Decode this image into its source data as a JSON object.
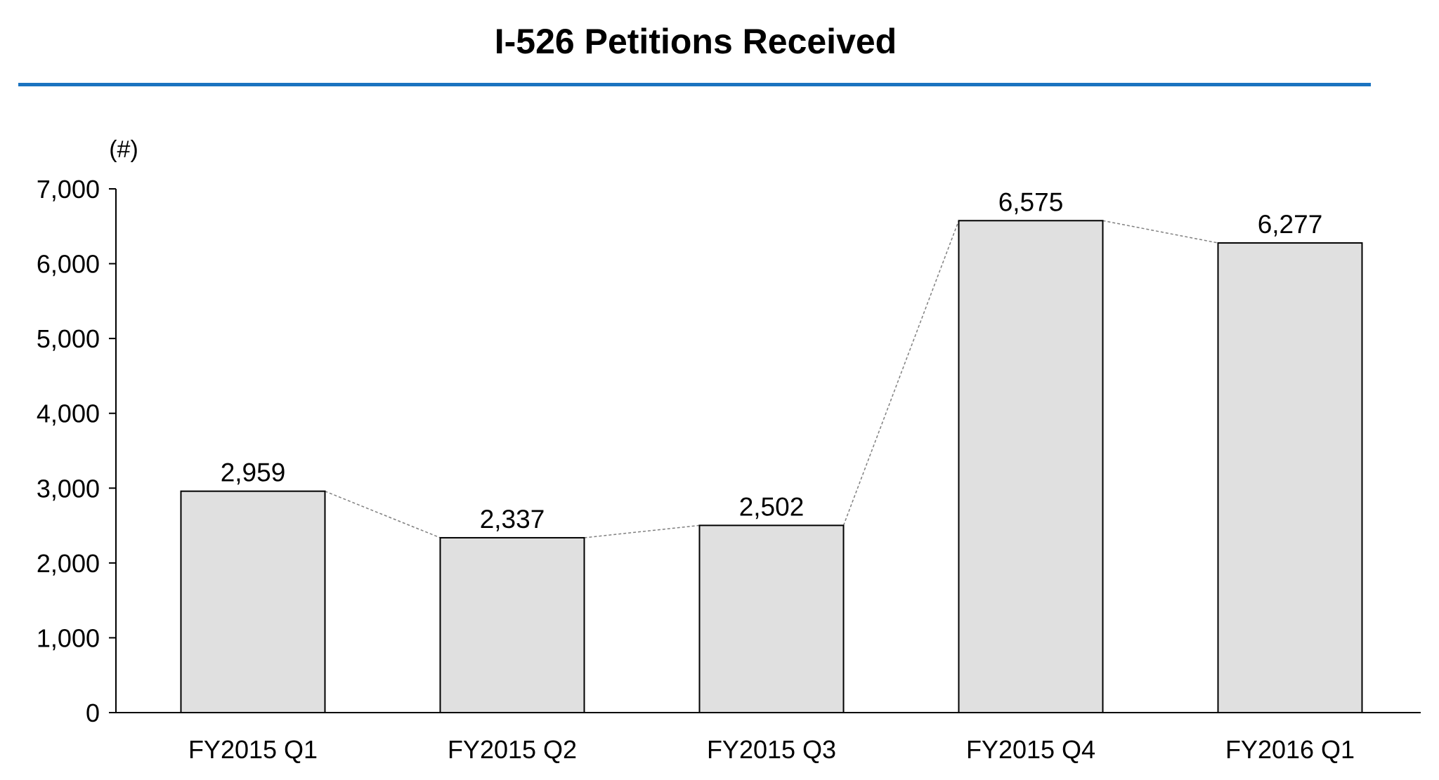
{
  "chart_data": {
    "type": "bar",
    "title": "I-526 Petitions Received",
    "ylabel": "(#)",
    "xlabel": "",
    "categories": [
      "FY2015 Q1",
      "FY2015 Q2",
      "FY2015 Q3",
      "FY2015 Q4",
      "FY2016 Q1"
    ],
    "values": [
      2959,
      2337,
      2502,
      6575,
      6277
    ],
    "value_labels": [
      "2,959",
      "2,337",
      "2,502",
      "6,575",
      "6,277"
    ],
    "ylim": [
      0,
      7000
    ],
    "yticks": [
      0,
      1000,
      2000,
      3000,
      4000,
      5000,
      6000,
      7000
    ],
    "ytick_labels": [
      "0",
      "1,000",
      "2,000",
      "3,000",
      "4,000",
      "5,000",
      "6,000",
      "7,000"
    ],
    "grid": false,
    "connector_line": "dashed",
    "colors": {
      "bar_fill": "#e0e0e0",
      "bar_stroke": "#000000",
      "rule": "#1a73c0",
      "connector": "#808080"
    }
  }
}
